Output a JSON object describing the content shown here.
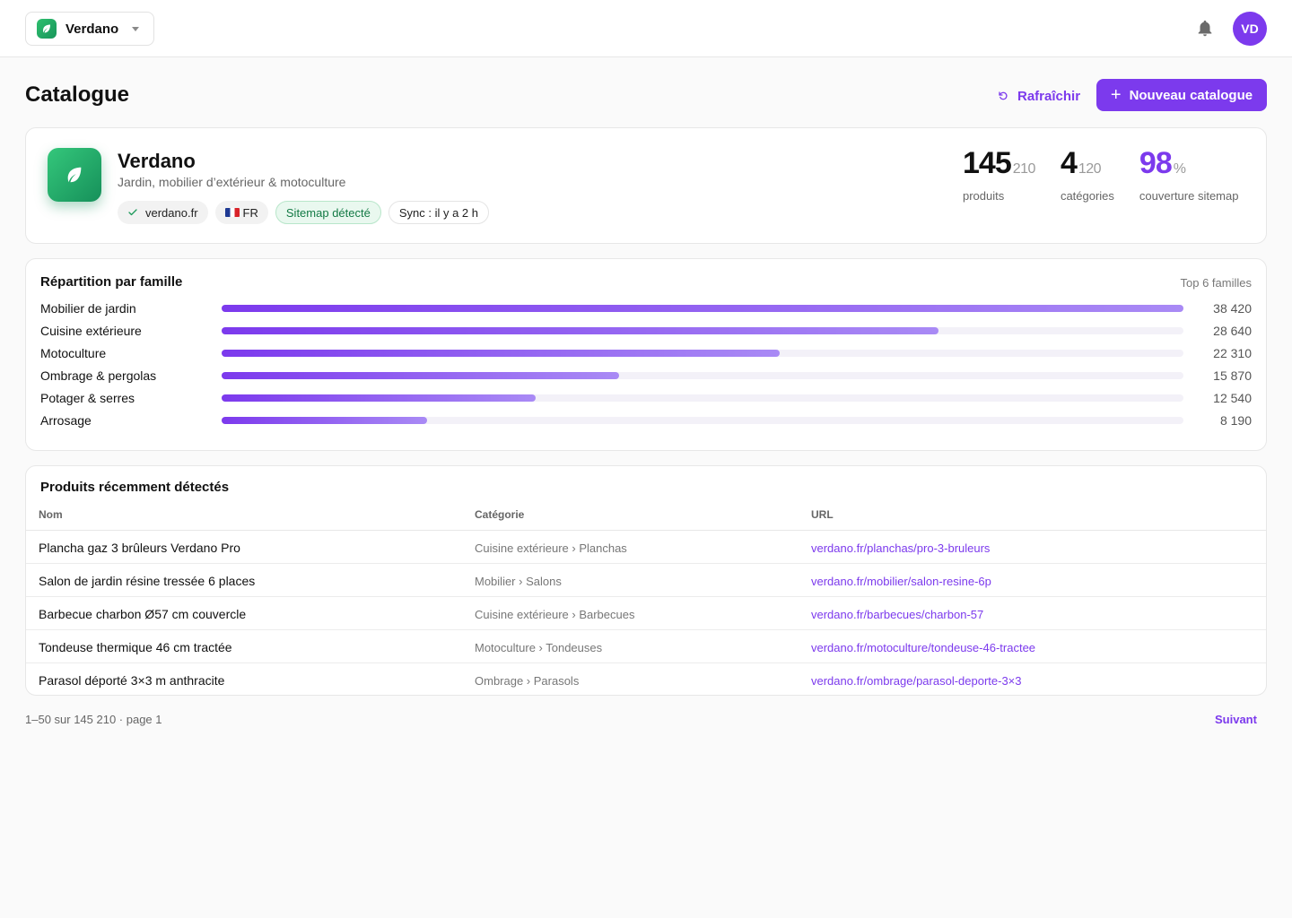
{
  "workspace": {
    "name": "Verdano"
  },
  "user": {
    "initials": "VD"
  },
  "header": {
    "title": "Catalogue",
    "refresh_label": "Rafraîchir",
    "new_label": "Nouveau catalogue"
  },
  "brand": {
    "name": "Verdano",
    "subtitle": "Jardin, mobilier d’extérieur & motoculture",
    "chips": {
      "domain": "verdano.fr",
      "lang": "FR",
      "sitemap": "Sitemap détecté",
      "sync": "Sync : il y a 2 h"
    },
    "stats": [
      {
        "big": "145",
        "small": "210",
        "label": "produits"
      },
      {
        "big": "4",
        "small": "120",
        "label": "catégories"
      },
      {
        "big": "98",
        "small": "%",
        "label": "couverture sitemap"
      }
    ]
  },
  "distribution": {
    "title": "Répartition par famille",
    "hint": "Top 6 familles",
    "rows": [
      {
        "label": "Mobilier de jardin",
        "value": "38 420",
        "count": 38420
      },
      {
        "label": "Cuisine extérieure",
        "value": "28 640",
        "count": 28640
      },
      {
        "label": "Motoculture",
        "value": "22 310",
        "count": 22310
      },
      {
        "label": "Ombrage & pergolas",
        "value": "15 870",
        "count": 15870
      },
      {
        "label": "Potager & serres",
        "value": "12 540",
        "count": 12540
      },
      {
        "label": "Arrosage",
        "value": "8 190",
        "count": 8190
      }
    ]
  },
  "recent": {
    "title": "Produits récemment détectés",
    "columns": {
      "name": "Nom",
      "category": "Catégorie",
      "url": "URL"
    },
    "rows": [
      {
        "name": "Plancha gaz 3 brûleurs Verdano Pro",
        "category": "Cuisine extérieure › Planchas",
        "url": "verdano.fr/planchas/pro-3-bruleurs"
      },
      {
        "name": "Salon de jardin résine tressée 6 places",
        "category": "Mobilier › Salons",
        "url": "verdano.fr/mobilier/salon-resine-6p"
      },
      {
        "name": "Barbecue charbon Ø57 cm couvercle",
        "category": "Cuisine extérieure › Barbecues",
        "url": "verdano.fr/barbecues/charbon-57"
      },
      {
        "name": "Tondeuse thermique 46 cm tractée",
        "category": "Motoculture › Tondeuses",
        "url": "verdano.fr/motoculture/tondeuse-46-tractee"
      },
      {
        "name": "Parasol déporté 3×3 m anthracite",
        "category": "Ombrage › Parasols",
        "url": "verdano.fr/ombrage/parasol-deporte-3×3"
      }
    ]
  },
  "pagination": {
    "info": "1–50 sur 145 210 · page 1",
    "next_label": "Suivant"
  },
  "colors": {
    "accent": "#7c3aed",
    "brand_green": "#1fa866",
    "success_bg": "#e9f8ef"
  },
  "icons": {
    "workspace": "leaf-icon",
    "notifications": "bell-icon",
    "refresh": "refresh-icon",
    "add": "plus-icon",
    "verified": "check-icon"
  }
}
